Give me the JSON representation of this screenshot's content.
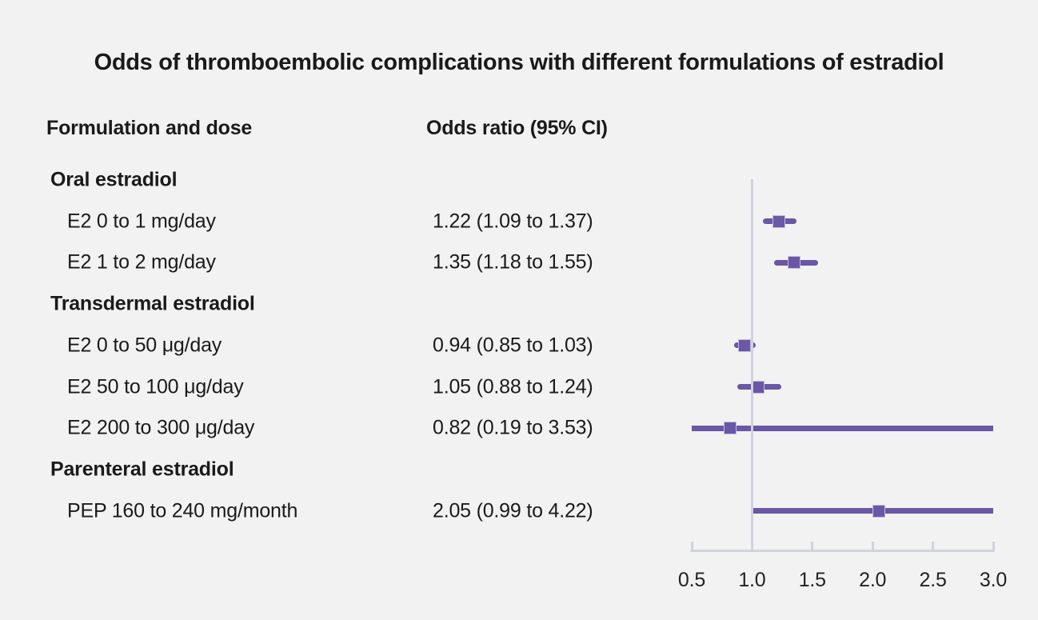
{
  "title": "Odds of thromboembolic complications with different formulations of estradiol",
  "table": {
    "col_formulation": "Formulation and dose",
    "col_odds_ratio": "Odds ratio (95% CI)"
  },
  "colors": {
    "background": "#f2f2f2",
    "ci_line": "#6a57a6",
    "marker_fill": "#6a57a6",
    "marker_border": "#c6bcdf",
    "axis_line": "#ced3dc",
    "text": "#1a1a1a"
  },
  "chart_data": {
    "type": "scatter",
    "subtype": "forest-plot",
    "title": "Odds of thromboembolic complications with different formulations of estradiol",
    "xlabel": "Odds ratio (95% CI)",
    "xlim": [
      0.5,
      3.0
    ],
    "xtick_values": [
      0.5,
      1.0,
      1.5,
      2.0,
      2.5,
      3.0
    ],
    "xtick_labels": [
      "0.5",
      "1.0",
      "1.5",
      "2.0",
      "2.5",
      "3.0"
    ],
    "reference_line_x": 1.0,
    "grid": false,
    "note": "CI lines are clipped to the axis range 0.5 to 3.0",
    "groups": [
      {
        "group": "Oral estradiol",
        "items": [
          {
            "label": "E2 0 to 1 mg/day",
            "or": 1.22,
            "ci_low": 1.09,
            "ci_high": 1.37,
            "text": "1.22 (1.09 to 1.37)"
          },
          {
            "label": "E2 1 to 2 mg/day",
            "or": 1.35,
            "ci_low": 1.18,
            "ci_high": 1.55,
            "text": "1.35 (1.18 to 1.55)"
          }
        ]
      },
      {
        "group": "Transdermal estradiol",
        "items": [
          {
            "label": "E2 0 to 50 μg/day",
            "or": 0.94,
            "ci_low": 0.85,
            "ci_high": 1.03,
            "text": "0.94 (0.85 to 1.03)"
          },
          {
            "label": "E2 50 to 100 μg/day",
            "or": 1.05,
            "ci_low": 0.88,
            "ci_high": 1.24,
            "text": "1.05 (0.88 to 1.24)"
          },
          {
            "label": "E2 200 to 300 μg/day",
            "or": 0.82,
            "ci_low": 0.19,
            "ci_high": 3.53,
            "text": "0.82 (0.19 to 3.53)"
          }
        ]
      },
      {
        "group": "Parenteral estradiol",
        "items": [
          {
            "label": "PEP 160 to 240 mg/month",
            "or": 2.05,
            "ci_low": 0.99,
            "ci_high": 4.22,
            "text": "2.05 (0.99 to 4.22)"
          }
        ]
      }
    ]
  }
}
